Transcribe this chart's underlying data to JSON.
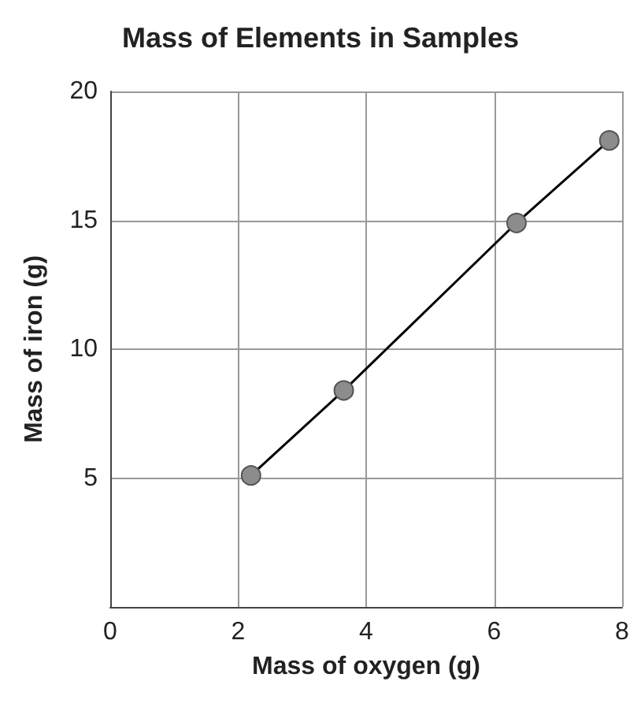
{
  "chart_data": {
    "type": "line",
    "title": "Mass of Elements in Samples",
    "xlabel": "Mass of oxygen (g)",
    "ylabel": "Mass of iron (g)",
    "x": [
      2.2,
      3.65,
      6.35,
      7.8
    ],
    "series": [
      {
        "color": "#8c8c8c",
        "values": [
          5.1,
          8.4,
          14.9,
          18.1
        ]
      }
    ],
    "xlim": [
      0,
      8
    ],
    "xticks": [
      0,
      2,
      4,
      6,
      8
    ],
    "ylim": [
      0,
      20
    ],
    "yticks": [
      5,
      10,
      15,
      20
    ],
    "grid": true,
    "marker": "circle",
    "line_style": "solid"
  }
}
